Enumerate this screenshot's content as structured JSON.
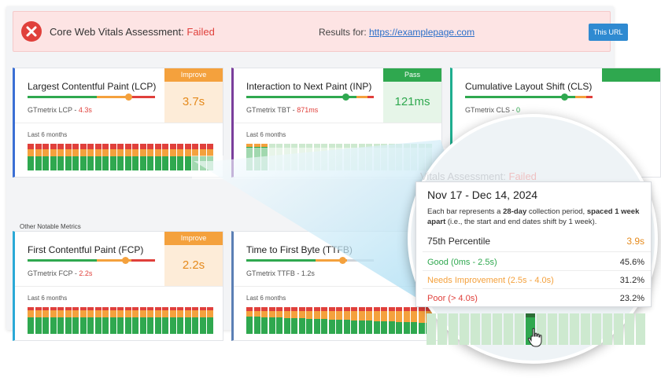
{
  "banner": {
    "title": "Core Web Vitals Assessment:",
    "status": "Failed",
    "results_label": "Results for:",
    "url": "https://examplepage.com",
    "button_label": "This URL"
  },
  "colors": {
    "good": "#2fa84f",
    "needs_improvement": "#f4a13d",
    "poor": "#e0403b",
    "improve_badge": "#f4a13d",
    "pass_badge": "#2fa84f"
  },
  "cards": [
    {
      "id": "lcp",
      "title": "Largest Contentful Paint (LCP)",
      "sub_label": "GTmetrix LCP -",
      "sub_value": "4.3s",
      "badge": "Improve",
      "value": "3.7s",
      "months_label": "Last 6 months"
    },
    {
      "id": "inp",
      "title": "Interaction to Next Paint (INP)",
      "sub_label": "GTmetrix TBT -",
      "sub_value": "871ms",
      "badge": "Pass",
      "value": "121ms",
      "months_label": "Last 6 months"
    },
    {
      "id": "cls",
      "title": "Cumulative Layout Shift (CLS)",
      "sub_label": "GTmetrix CLS -",
      "sub_value": "0",
      "badge": "",
      "value": "",
      "months_label": ""
    },
    {
      "id": "fcp",
      "title": "First Contentful Paint (FCP)",
      "sub_label": "GTmetrix FCP -",
      "sub_value": "2.2s",
      "badge": "Improve",
      "value": "2.2s",
      "months_label": "Last 6 months"
    },
    {
      "id": "ttfb",
      "title": "Time to First Byte (TTFB)",
      "sub_label": "GTmetrix TTFB -",
      "sub_value": "1.2s",
      "badge": "",
      "value": "",
      "months_label": "Last 6 months"
    }
  ],
  "other_metrics_label": "Other Notable Metrics",
  "magnifier": {
    "ghost_text": "Vitals Assessment:",
    "ghost_status": "Failed",
    "tooltip": {
      "title": "Nov 17 - Dec 14, 2024",
      "desc_1": "Each bar represents a",
      "desc_bold_1": "28-day",
      "desc_2": "collection period,",
      "desc_bold_2": "spaced 1 week apart",
      "desc_3": "(i.e., the start and end dates shift by 1 week).",
      "percentile_label": "75th Percentile",
      "percentile_value": "3.9s",
      "rows": [
        {
          "label": "Good (0ms - 2.5s)",
          "value": "45.6%",
          "tone": "good"
        },
        {
          "label": "Needs Improvement (2.5s - 4.0s)",
          "value": "31.2%",
          "tone": "needs_improvement"
        },
        {
          "label": "Poor (> 4.0s)",
          "value": "23.2%",
          "tone": "poor"
        }
      ]
    }
  }
}
